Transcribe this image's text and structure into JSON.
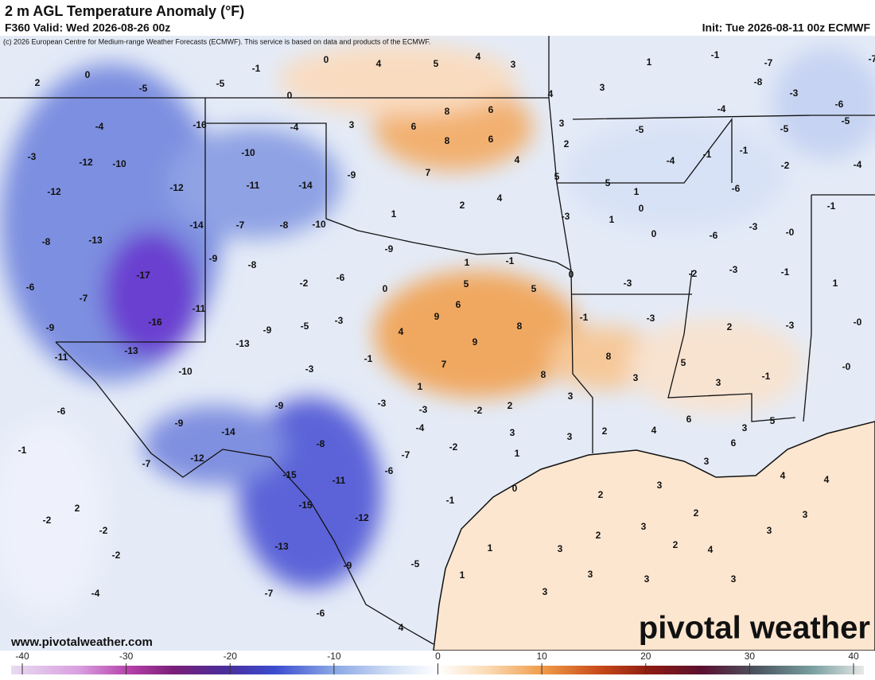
{
  "header": {
    "title": "2 m AGL Temperature Anomaly (°F)",
    "valid": "F360 Valid: Wed 2026-08-26 00z",
    "init": "Init: Tue 2026-08-11 00z ECMWF",
    "copyright": "(c) 2026 European Centre for Medium-range Weather Forecasts (ECMWF). This service is based on data and products of the ECMWF."
  },
  "map_labels": [
    -1,
    0,
    4,
    5,
    4,
    3,
    1,
    -1,
    -7,
    -7,
    2,
    0,
    -5,
    -5,
    0,
    3,
    -8,
    4,
    -3,
    -6,
    -4,
    8,
    6,
    -4,
    -16,
    -4,
    3,
    6,
    3,
    -5,
    -5,
    -5,
    8,
    6,
    2,
    -3,
    -10,
    -12,
    -10,
    -1,
    -4,
    4,
    -1,
    -2,
    -4,
    -9,
    7,
    5,
    5,
    -11,
    -14,
    -12,
    -12,
    1,
    -6,
    2,
    4,
    0,
    -1,
    1,
    -3,
    1,
    -14,
    -7,
    -8,
    -10,
    -3,
    {
      "value": 0,
      "label": "-0"
    },
    0,
    -6,
    -8,
    -13,
    -9,
    1,
    -1,
    -9,
    -8,
    0,
    -3,
    -2,
    -1,
    -17,
    -2,
    -6,
    5,
    -6,
    0,
    5,
    -3,
    1,
    -7,
    6,
    -11,
    9,
    -9,
    -5,
    -3,
    -1,
    -3,
    -9,
    -16,
    8,
    2,
    -3,
    {
      "value": 0,
      "label": "-0"
    },
    4,
    9,
    -13,
    -13,
    -11,
    -1,
    8,
    5,
    7,
    -10,
    -3,
    8,
    3,
    -1,
    {
      "value": 0,
      "label": "-0"
    },
    3,
    1,
    3,
    -6,
    -3,
    -9,
    -3,
    -2,
    2,
    -9,
    -4,
    -14,
    2,
    4,
    6,
    5,
    3,
    3,
    3,
    -1,
    -8,
    -2,
    -12,
    -7,
    -7,
    1,
    6,
    3,
    -6,
    -15,
    -11,
    4,
    4,
    0,
    3,
    -15,
    -1,
    2,
    -12,
    2,
    -2,
    -2,
    2,
    3,
    3,
    2,
    3,
    1,
    3,
    -13,
    2,
    4,
    -2,
    -5,
    -9,
    1,
    3,
    3,
    3,
    -4,
    -7,
    3,
    -6,
    4
  ],
  "colorbar": {
    "range": [
      -40,
      40
    ],
    "ticks": [
      -40,
      -30,
      -20,
      -10,
      0,
      10,
      20,
      30,
      40
    ]
  },
  "footer": {
    "website": "www.pivotalweather.com",
    "logo": "pivotal weather"
  }
}
